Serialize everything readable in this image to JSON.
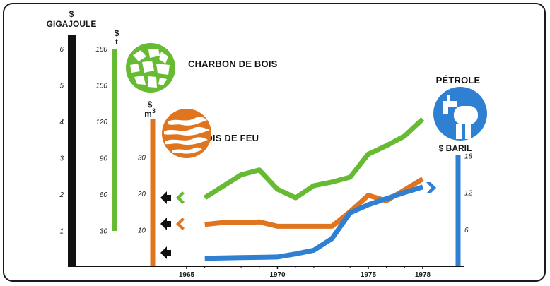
{
  "chart_data": {
    "type": "line",
    "x": [
      1966,
      1967,
      1968,
      1969,
      1970,
      1971,
      1972,
      1973,
      1974,
      1975,
      1976,
      1977,
      1978
    ],
    "series": [
      {
        "name": "CHARBON DE BOIS",
        "color": "#66bb33",
        "axis": "$ t",
        "values": [
          null,
          null,
          76,
          80,
          64,
          57,
          67,
          70,
          74,
          93,
          100,
          108,
          122
        ]
      },
      {
        "name": "BOIS DE FEU",
        "color": "#e07520",
        "axis": "$ m3",
        "values": [
          11.5,
          12,
          12,
          12.2,
          11,
          11,
          11,
          11,
          15,
          19.5,
          18,
          21,
          24
        ]
      },
      {
        "name": "PÉTROLE",
        "color": "#2f7fd2",
        "axis": "$ BARIL",
        "values": [
          1.3,
          1.35,
          1.4,
          1.45,
          1.5,
          2.0,
          2.6,
          4.5,
          8.7,
          10.0,
          11.0,
          12.0,
          12.9
        ]
      }
    ],
    "axes": {
      "gigajoule": {
        "unit_line1": "$",
        "unit_line2": "GIGAJOULE",
        "ticks": [
          "1",
          "2",
          "3",
          "4",
          "5",
          "6"
        ],
        "range": [
          0,
          6
        ],
        "color": "#111111"
      },
      "tonne": {
        "unit_line1": "$",
        "unit_line2": "t",
        "ticks": [
          "30",
          "60",
          "90",
          "120",
          "150",
          "180"
        ],
        "range": [
          30,
          180
        ],
        "color": "#66bb33"
      },
      "m3": {
        "unit_line1": "$",
        "unit_line2": "m",
        "unit_sup": "3",
        "ticks": [
          "10",
          "20",
          "30"
        ],
        "range": [
          0,
          42
        ],
        "color": "#e07520"
      },
      "baril": {
        "unit": "$ BARIL",
        "ticks": [
          "6",
          "12",
          "18"
        ],
        "range": [
          0,
          18
        ],
        "color": "#2f7fd2"
      }
    },
    "x_ticks": [
      "1965",
      "1970",
      "1975",
      "1978"
    ],
    "xlim": [
      1963,
      1980
    ],
    "labels": {
      "charbon": "CHARBON DE BOIS",
      "bois": "BOIS DE FEU",
      "petrole": "PÉTROLE"
    },
    "icons": {
      "charbon": "charcoal-icon",
      "bois": "firewood-icon",
      "petrole": "oil-tap-icon",
      "arrows_left": "arrow-left-icon",
      "arrow_right": "arrow-right-icon"
    },
    "grid": false,
    "legend": "none"
  }
}
